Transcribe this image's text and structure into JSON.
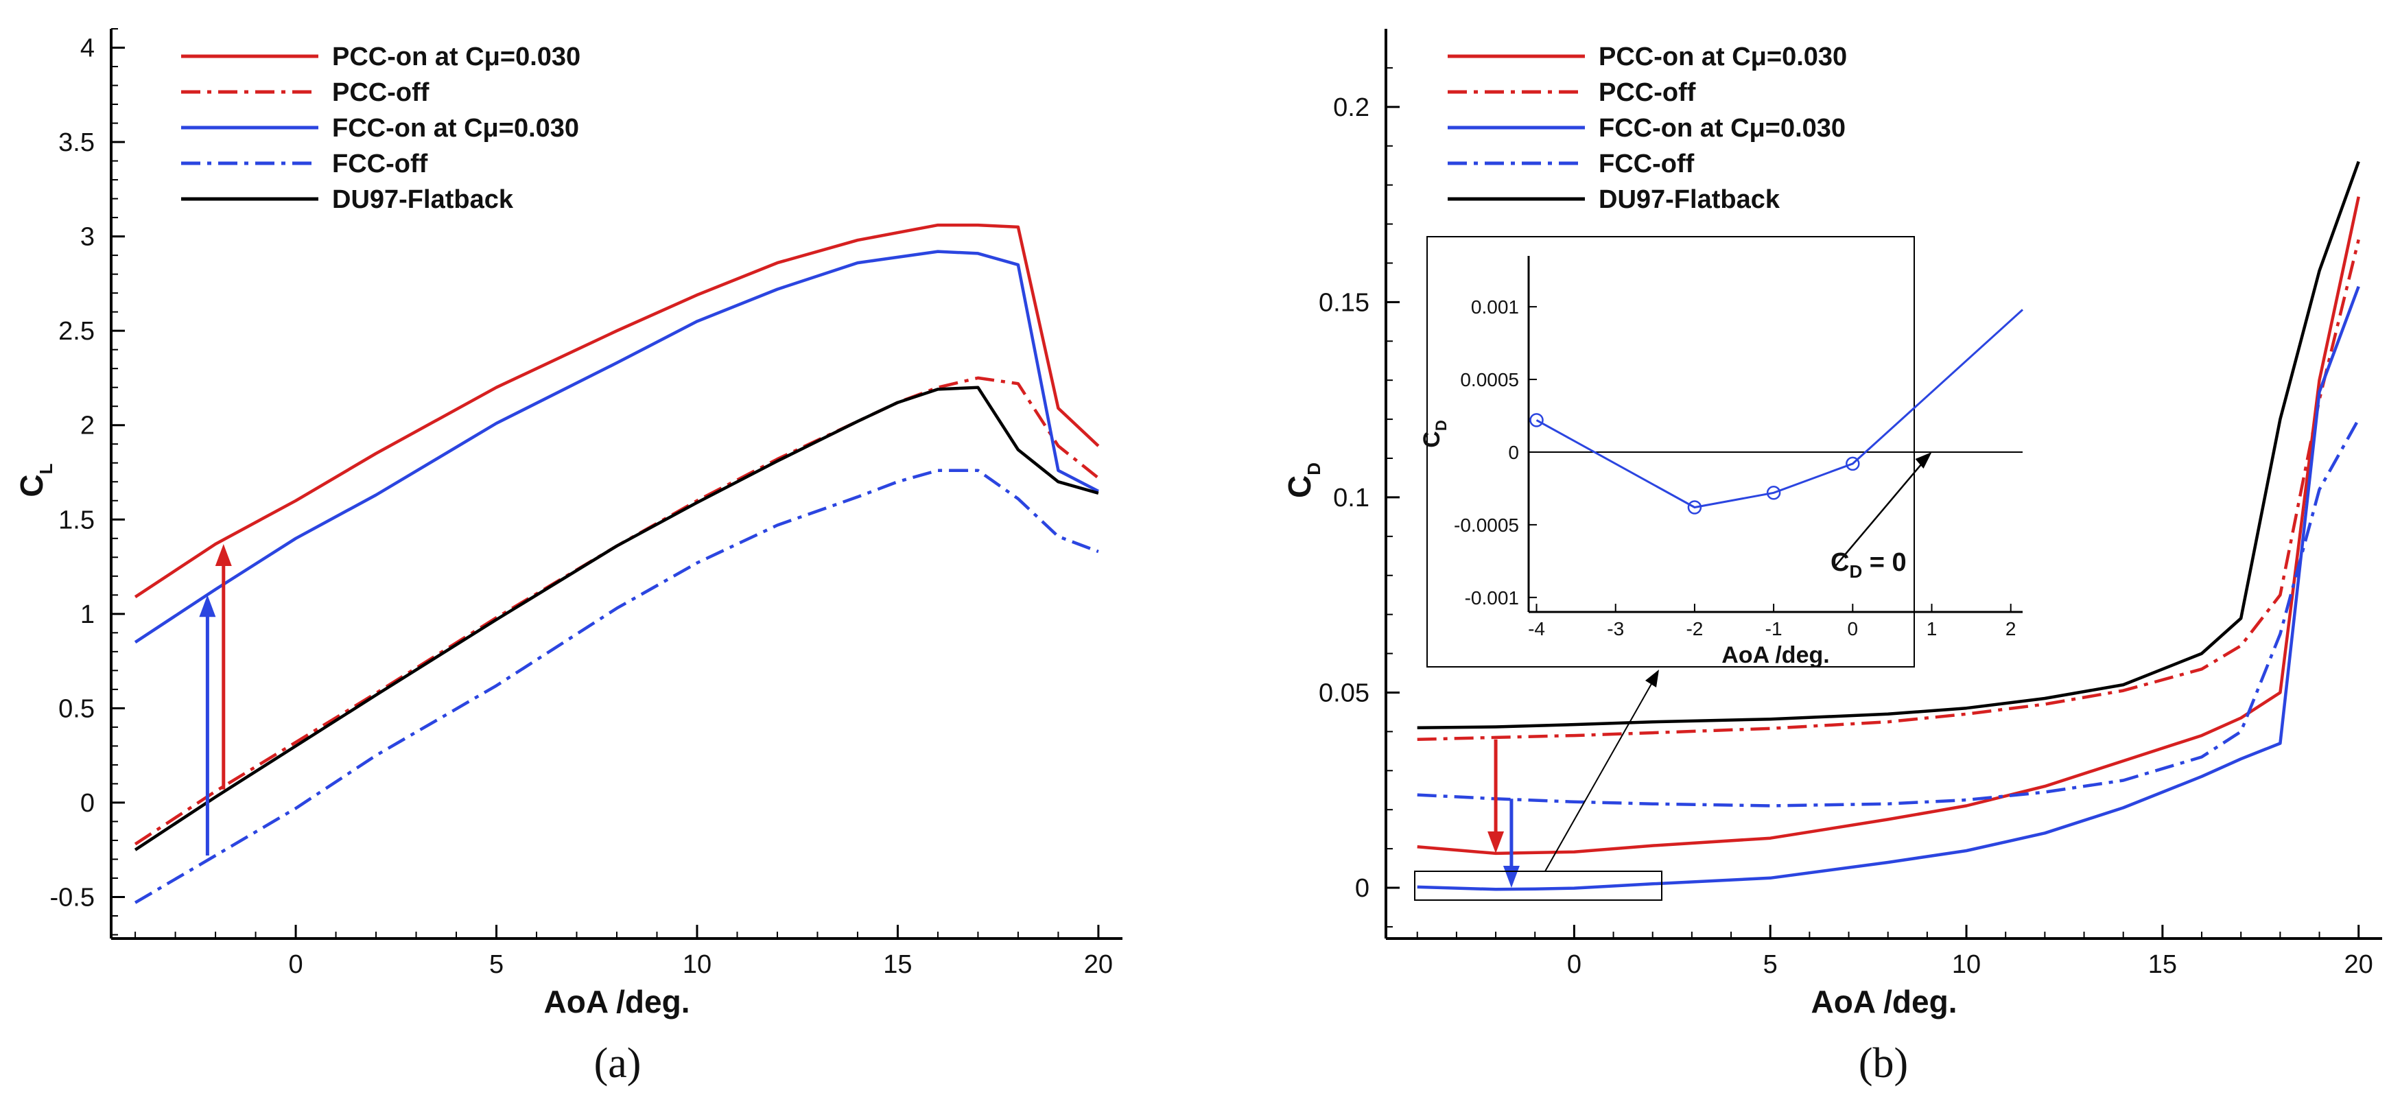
{
  "chart_data": [
    {
      "panel": "a",
      "type": "line",
      "caption": "(a)",
      "xlabel": "AoA /deg.",
      "ylabel": "C",
      "ylabel_sub": "L",
      "xlim": [
        -4.6,
        20.6
      ],
      "ylim": [
        -0.72,
        4.1
      ],
      "xticks": [
        0,
        5,
        10,
        15,
        20
      ],
      "yticks": [
        -0.5,
        0,
        0.5,
        1,
        1.5,
        2,
        2.5,
        3,
        3.5,
        4
      ],
      "xticklabels": [
        "0",
        "5",
        "10",
        "15",
        "20"
      ],
      "yticklabels": [
        "-0.5",
        "0",
        "0.5",
        "1",
        "1.5",
        "2",
        "2.5",
        "3",
        "3.5",
        "4"
      ],
      "series": [
        {
          "name": "PCC-on at Cμ=0.030",
          "color": "#d62020",
          "dash": "solid",
          "x": [
            -4,
            -2,
            0,
            2,
            5,
            8,
            10,
            12,
            14,
            15,
            16,
            17,
            18,
            19,
            20
          ],
          "y": [
            1.09,
            1.37,
            1.6,
            1.85,
            2.2,
            2.5,
            2.69,
            2.86,
            2.98,
            3.02,
            3.06,
            3.06,
            3.05,
            2.09,
            1.89
          ]
        },
        {
          "name": "PCC-off",
          "color": "#d62020",
          "dash": "dashdot",
          "x": [
            -4,
            -2,
            0,
            2,
            5,
            8,
            10,
            12,
            14,
            15,
            16,
            17,
            18,
            19,
            20
          ],
          "y": [
            -0.22,
            0.06,
            0.32,
            0.58,
            0.98,
            1.36,
            1.6,
            1.82,
            2.02,
            2.12,
            2.2,
            2.25,
            2.22,
            1.89,
            1.72
          ]
        },
        {
          "name": "FCC-on at Cμ=0.030",
          "color": "#2b45e0",
          "dash": "solid",
          "x": [
            -4,
            -2,
            0,
            2,
            5,
            8,
            10,
            12,
            14,
            15,
            16,
            17,
            18,
            19,
            20
          ],
          "y": [
            0.85,
            1.13,
            1.4,
            1.63,
            2.01,
            2.33,
            2.55,
            2.72,
            2.86,
            2.89,
            2.92,
            2.91,
            2.85,
            1.76,
            1.65
          ]
        },
        {
          "name": "FCC-off",
          "color": "#2b45e0",
          "dash": "dashdot",
          "x": [
            -4,
            -2,
            0,
            2,
            5,
            8,
            10,
            12,
            14,
            15,
            16,
            17,
            18,
            19,
            20
          ],
          "y": [
            -0.53,
            -0.28,
            -0.03,
            0.25,
            0.62,
            1.03,
            1.27,
            1.47,
            1.62,
            1.7,
            1.76,
            1.76,
            1.61,
            1.41,
            1.33
          ]
        },
        {
          "name": "DU97-Flatback",
          "color": "#000000",
          "dash": "solid",
          "x": [
            -4,
            -2,
            0,
            2,
            5,
            8,
            10,
            12,
            14,
            15,
            16,
            17,
            18,
            19,
            20
          ],
          "y": [
            -0.25,
            0.03,
            0.3,
            0.57,
            0.97,
            1.36,
            1.59,
            1.81,
            2.02,
            2.12,
            2.19,
            2.2,
            1.87,
            1.7,
            1.64
          ]
        }
      ],
      "annotations": [
        {
          "type": "arrow",
          "color": "#d62020",
          "x": -1.8,
          "from": 0.07,
          "to": 1.37
        },
        {
          "type": "arrow",
          "color": "#2b45e0",
          "x": -2.2,
          "from": -0.28,
          "to": 1.1
        }
      ]
    },
    {
      "panel": "b",
      "type": "line",
      "caption": "(b)",
      "xlabel": "AoA /deg.",
      "ylabel": "C",
      "ylabel_sub": "D",
      "xlim": [
        -4.8,
        20.6
      ],
      "ylim": [
        -0.013,
        0.22
      ],
      "xticks": [
        0,
        5,
        10,
        15,
        20
      ],
      "yticks": [
        0,
        0.05,
        0.1,
        0.15,
        0.2
      ],
      "xticklabels": [
        "0",
        "5",
        "10",
        "15",
        "20"
      ],
      "yticklabels": [
        "0",
        "0.05",
        "0.1",
        "0.15",
        "0.2"
      ],
      "series": [
        {
          "name": "PCC-on at Cμ=0.030",
          "color": "#d62020",
          "dash": "solid",
          "x": [
            -4,
            -2,
            0,
            2,
            5,
            8,
            10,
            12,
            14,
            16,
            17,
            18,
            19,
            20
          ],
          "y": [
            0.0105,
            0.0088,
            0.0092,
            0.0108,
            0.0127,
            0.0175,
            0.021,
            0.026,
            0.0325,
            0.039,
            0.0435,
            0.05,
            0.13,
            0.177
          ]
        },
        {
          "name": "PCC-off",
          "color": "#d62020",
          "dash": "dashdot",
          "x": [
            -4,
            -2,
            0,
            2,
            5,
            8,
            10,
            12,
            14,
            16,
            17,
            18,
            19,
            20
          ],
          "y": [
            0.038,
            0.0385,
            0.039,
            0.0397,
            0.0408,
            0.0425,
            0.0445,
            0.047,
            0.0505,
            0.056,
            0.062,
            0.075,
            0.125,
            0.166
          ]
        },
        {
          "name": "FCC-on at Cμ=0.030",
          "color": "#2b45e0",
          "dash": "solid",
          "x": [
            -4,
            -2,
            -1,
            0,
            2,
            5,
            8,
            10,
            12,
            14,
            16,
            17,
            18,
            19,
            20
          ],
          "y": [
            0.0002,
            -0.0004,
            -0.0003,
            -0.0001,
            0.001,
            0.0025,
            0.0065,
            0.0095,
            0.014,
            0.0205,
            0.0285,
            0.033,
            0.037,
            0.127,
            0.154
          ]
        },
        {
          "name": "FCC-off",
          "color": "#2b45e0",
          "dash": "dashdot",
          "x": [
            -4,
            -2,
            0,
            2,
            5,
            8,
            10,
            12,
            14,
            16,
            17,
            18,
            19,
            20
          ],
          "y": [
            0.0238,
            0.0228,
            0.022,
            0.0215,
            0.021,
            0.0215,
            0.0225,
            0.0245,
            0.0275,
            0.0335,
            0.04,
            0.065,
            0.102,
            0.12
          ]
        },
        {
          "name": "DU97-Flatback",
          "color": "#000000",
          "dash": "solid",
          "x": [
            -4,
            -2,
            0,
            2,
            5,
            8,
            10,
            12,
            14,
            16,
            17,
            18,
            19,
            20
          ],
          "y": [
            0.041,
            0.0412,
            0.0418,
            0.0425,
            0.0432,
            0.0445,
            0.046,
            0.0485,
            0.052,
            0.06,
            0.069,
            0.12,
            0.158,
            0.186
          ]
        }
      ],
      "annotations": [
        {
          "type": "arrow",
          "color": "#d62020",
          "x": -2.0,
          "from": 0.038,
          "to": 0.0088
        },
        {
          "type": "arrow",
          "color": "#2b45e0",
          "x": -1.6,
          "from": 0.0228,
          "to": 0.0
        }
      ],
      "inset": {
        "xlabel": "AoA /deg.",
        "ylabel": "C",
        "ylabel_sub": "D",
        "xlim": [
          -4.1,
          2.15
        ],
        "ylim": [
          -0.0011,
          0.00135
        ],
        "xticks": [
          -4,
          -3,
          -2,
          -1,
          0,
          1,
          2
        ],
        "yticks": [
          -0.001,
          -0.0005,
          0,
          0.0005,
          0.001
        ],
        "xticklabels": [
          "-4",
          "-3",
          "-2",
          "-1",
          "0",
          "1",
          "2"
        ],
        "yticklabels": [
          "-0.001",
          "-0.0005",
          "0",
          "0.0005",
          "0.001"
        ],
        "series": {
          "color": "#2b45e0",
          "x": [
            -4,
            -2,
            -1,
            0,
            2.15
          ],
          "y": [
            0.00022,
            -0.00038,
            -0.00028,
            -8e-05,
            0.00098
          ],
          "markers_x": [
            -4,
            -2,
            -1,
            0
          ],
          "markers_y": [
            0.00022,
            -0.00038,
            -0.00028,
            -8e-05
          ]
        },
        "zero_line": 0,
        "annotation": {
          "label": "C",
          "label_sub": "D",
          "label_suffix": " = 0",
          "arrow_to_x": 1.0,
          "arrow_to_y": 0
        }
      }
    }
  ]
}
